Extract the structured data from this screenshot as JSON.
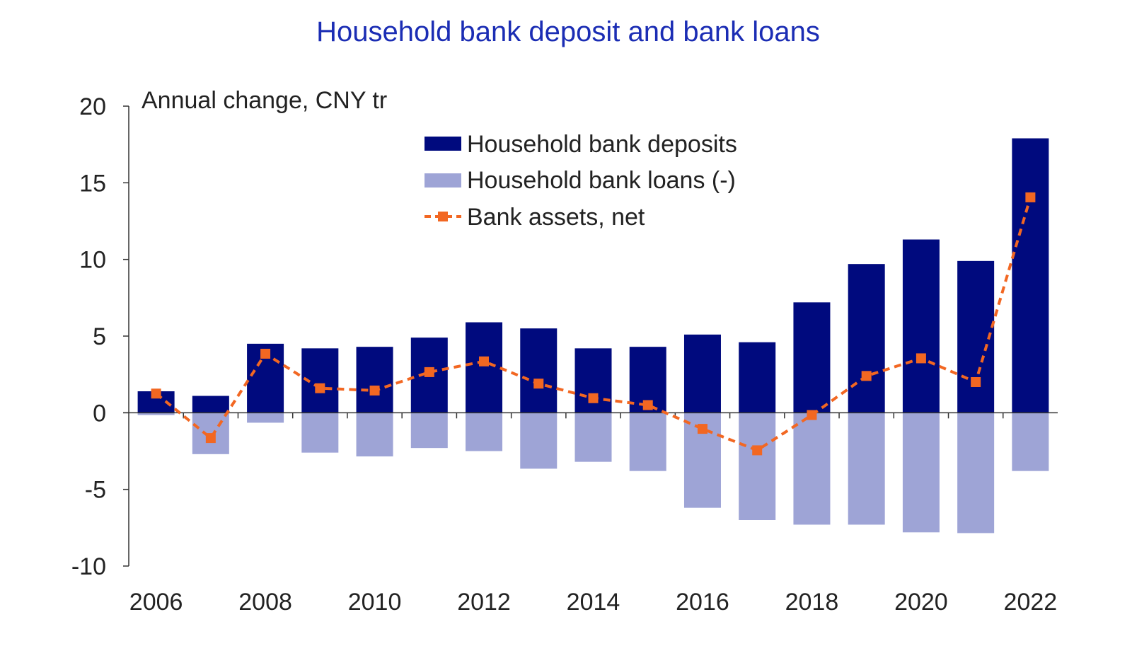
{
  "chart_data": {
    "type": "bar",
    "title": "Household bank deposit and bank loans",
    "ylabel": "Annual change, CNY tr",
    "xlabel": "",
    "ylim": [
      -10,
      20
    ],
    "yticks": [
      20,
      15,
      10,
      5,
      0,
      -5,
      -10
    ],
    "xtick_labels": [
      "2006",
      "2008",
      "2010",
      "2012",
      "2014",
      "2016",
      "2018",
      "2020",
      "2022"
    ],
    "categories": [
      "2006",
      "2007",
      "2008",
      "2009",
      "2010",
      "2011",
      "2012",
      "2013",
      "2014",
      "2015",
      "2016",
      "2017",
      "2018",
      "2019",
      "2020",
      "2021",
      "2022"
    ],
    "legend_position": "top-center",
    "series": [
      {
        "name": "Household bank deposits",
        "type": "bar",
        "color": "#000a7e",
        "values": [
          1.4,
          1.1,
          4.5,
          4.2,
          4.3,
          4.9,
          5.9,
          5.5,
          4.2,
          4.3,
          5.1,
          4.6,
          7.2,
          9.7,
          11.3,
          9.9,
          17.9
        ]
      },
      {
        "name": "Household bank loans (-)",
        "type": "bar",
        "color": "#9ea4d6",
        "values": [
          -0.15,
          -2.7,
          -0.65,
          -2.6,
          -2.85,
          -2.3,
          -2.5,
          -3.65,
          -3.2,
          -3.8,
          -6.2,
          -7.0,
          -7.3,
          -7.3,
          -7.8,
          -7.85,
          -3.8
        ]
      },
      {
        "name": "Bank assets, net",
        "type": "line",
        "color": "#f26722",
        "dashed": true,
        "marker": "square",
        "values": [
          1.25,
          -1.65,
          3.85,
          1.6,
          1.45,
          2.65,
          3.35,
          1.9,
          0.95,
          0.5,
          -1.05,
          -2.45,
          -0.15,
          2.4,
          3.55,
          2.0,
          14.05
        ]
      }
    ]
  }
}
